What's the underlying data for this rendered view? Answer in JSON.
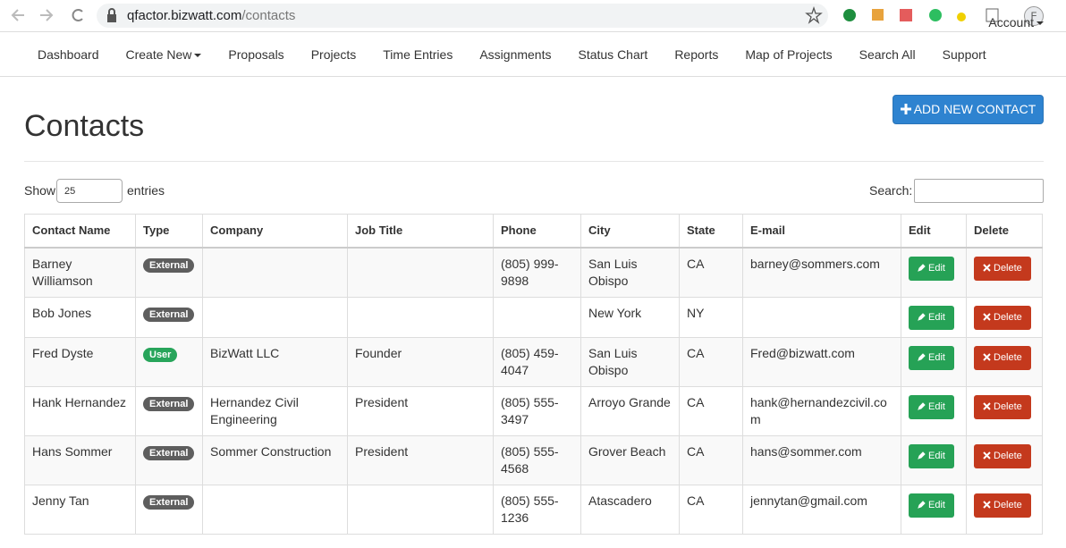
{
  "browser": {
    "url_host": "qfactor.bizwatt.com",
    "url_path": "/contacts",
    "profile": "F"
  },
  "nav": {
    "items": [
      "Dashboard",
      "Create New",
      "Proposals",
      "Projects",
      "Time Entries",
      "Assignments",
      "Status Chart",
      "Reports",
      "Map of Projects",
      "Search All",
      "Support"
    ],
    "account": "Account"
  },
  "page": {
    "title": "Contacts",
    "add_button": "ADD NEW CONTACT",
    "show_label": "Show",
    "entries_value": "25",
    "entries_label": "entries",
    "search_label": "Search:"
  },
  "table": {
    "headers": [
      "Contact Name",
      "Type",
      "Company",
      "Job Title",
      "Phone",
      "City",
      "State",
      "E-mail",
      "Edit",
      "Delete"
    ],
    "rows": [
      [
        "Barney Williamson",
        "External",
        null,
        null,
        "(805) 999-9898",
        "San Luis Obispo",
        "CA",
        "barney@sommers.com",
        "Edit",
        "Delete"
      ],
      [
        "Bob Jones",
        "External",
        null,
        null,
        null,
        "New York",
        "NY",
        null,
        "Edit",
        "Delete"
      ],
      [
        "Fred Dyste",
        "User",
        "BizWatt LLC",
        "Founder",
        "(805) 459-4047",
        "San Luis Obispo",
        "CA",
        "Fred@bizwatt.com",
        "Edit",
        "Delete"
      ],
      [
        "Hank Hernandez",
        "External",
        "Hernandez Civil Engineering",
        "President",
        "(805) 555-3497",
        "Arroyo Grande",
        "CA",
        "hank@hernandezcivil.com",
        "Edit",
        "Delete"
      ],
      [
        "Hans Sommer",
        "External",
        "Sommer Construction",
        "President",
        "(805) 555-4568",
        "Grover Beach",
        "CA",
        "hans@sommer.com",
        "Edit",
        "Delete"
      ],
      [
        "Jenny Tan",
        "External",
        null,
        null,
        "(805) 555-1236",
        "Atascadero",
        "CA",
        "jennytan@gmail.com",
        "Edit",
        "Delete"
      ]
    ]
  }
}
